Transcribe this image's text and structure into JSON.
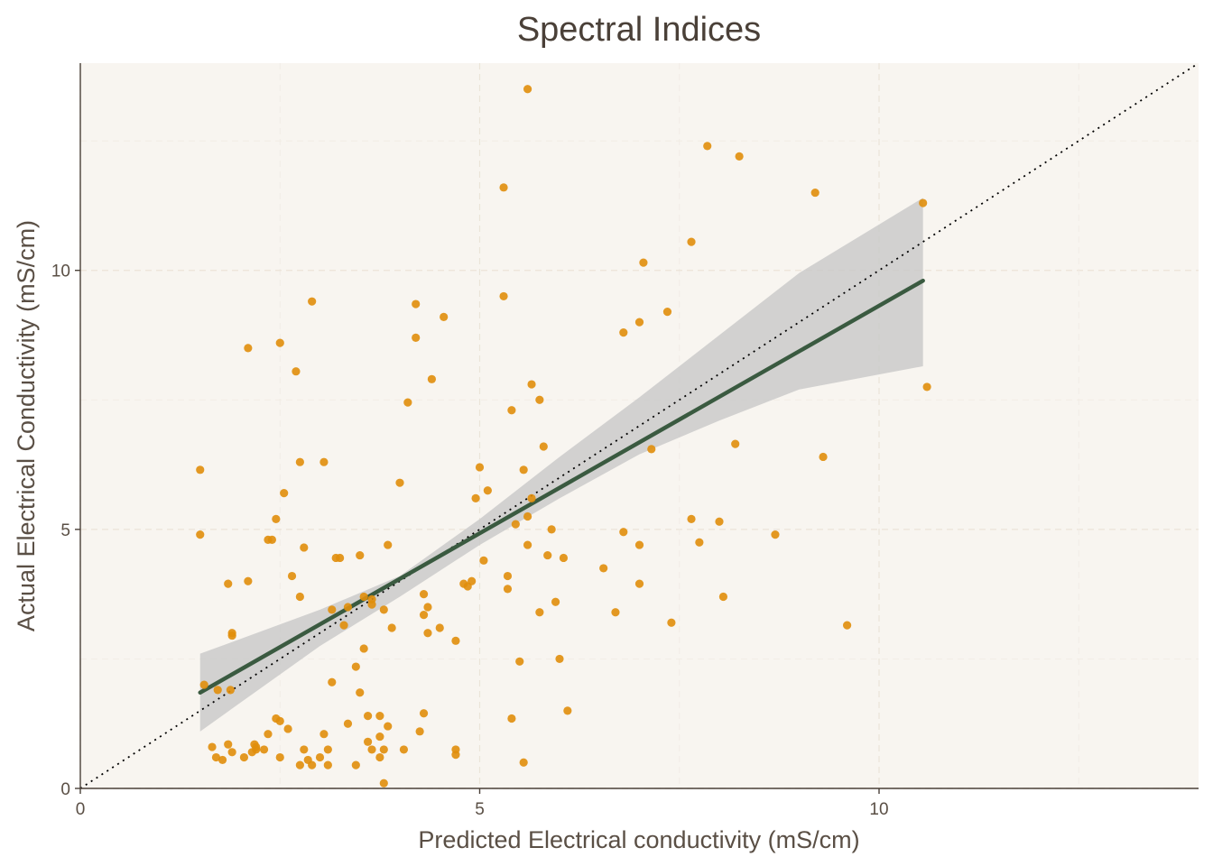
{
  "chart_data": {
    "type": "scatter",
    "title": "Spectral Indices",
    "xlabel": "Predicted Electrical conductivity (mS/cm)",
    "ylabel": "Actual Electrical Conductivity (mS/cm)",
    "xlim": [
      0,
      14
    ],
    "ylim": [
      0,
      14
    ],
    "x_ticks": [
      0,
      5,
      10
    ],
    "y_ticks": [
      0,
      5,
      10
    ],
    "grid": true,
    "colors": {
      "background": "#f8f5f0",
      "points": "#e08e0b",
      "fit_line": "#3a5a40",
      "confidence_band": "#c8c8c8",
      "identity_line": "#000000",
      "axis": "#4a4038"
    },
    "fit": {
      "x_start": 1.5,
      "y_start": 1.85,
      "x_end": 10.55,
      "y_end": 9.8
    },
    "confidence_band": {
      "x": [
        1.5,
        3.0,
        4.0,
        5.0,
        6.0,
        7.0,
        8.0,
        9.0,
        10.55
      ],
      "upper": [
        2.6,
        3.45,
        4.1,
        5.2,
        6.4,
        7.55,
        8.75,
        9.95,
        11.4
      ],
      "lower": [
        1.1,
        2.75,
        3.7,
        4.7,
        5.6,
        6.45,
        7.1,
        7.7,
        8.15
      ]
    },
    "series": [
      {
        "points": [
          [
            1.5,
            6.15
          ],
          [
            1.5,
            4.9
          ],
          [
            1.55,
            2.0
          ],
          [
            1.65,
            0.8
          ],
          [
            1.7,
            0.6
          ],
          [
            1.72,
            1.9
          ],
          [
            1.78,
            0.55
          ],
          [
            1.85,
            0.85
          ],
          [
            1.85,
            3.95
          ],
          [
            1.88,
            1.9
          ],
          [
            1.9,
            0.7
          ],
          [
            1.9,
            3.0
          ],
          [
            1.9,
            2.95
          ],
          [
            2.05,
            0.6
          ],
          [
            2.15,
            0.7
          ],
          [
            2.18,
            0.85
          ],
          [
            2.2,
            0.75
          ],
          [
            2.2,
            0.8
          ],
          [
            2.1,
            4.0
          ],
          [
            2.1,
            8.5
          ],
          [
            2.3,
            0.75
          ],
          [
            2.35,
            1.05
          ],
          [
            2.35,
            4.8
          ],
          [
            2.4,
            4.8
          ],
          [
            2.45,
            5.2
          ],
          [
            2.45,
            1.35
          ],
          [
            2.5,
            8.6
          ],
          [
            2.5,
            0.6
          ],
          [
            2.5,
            1.3
          ],
          [
            2.55,
            5.7
          ],
          [
            2.6,
            1.15
          ],
          [
            2.65,
            4.1
          ],
          [
            2.7,
            8.05
          ],
          [
            2.75,
            0.45
          ],
          [
            2.75,
            3.7
          ],
          [
            2.75,
            6.3
          ],
          [
            2.8,
            0.75
          ],
          [
            2.8,
            4.65
          ],
          [
            2.85,
            0.55
          ],
          [
            2.9,
            0.45
          ],
          [
            2.9,
            9.4
          ],
          [
            3.0,
            0.6
          ],
          [
            3.05,
            1.05
          ],
          [
            3.05,
            6.3
          ],
          [
            3.1,
            0.45
          ],
          [
            3.1,
            0.75
          ],
          [
            3.15,
            2.05
          ],
          [
            3.15,
            3.45
          ],
          [
            3.2,
            4.45
          ],
          [
            3.25,
            4.45
          ],
          [
            3.3,
            3.15
          ],
          [
            3.35,
            3.5
          ],
          [
            3.35,
            1.25
          ],
          [
            3.45,
            0.45
          ],
          [
            3.45,
            2.35
          ],
          [
            3.5,
            1.85
          ],
          [
            3.5,
            4.5
          ],
          [
            3.55,
            3.7
          ],
          [
            3.55,
            2.7
          ],
          [
            3.6,
            1.4
          ],
          [
            3.6,
            0.9
          ],
          [
            3.65,
            3.55
          ],
          [
            3.65,
            0.75
          ],
          [
            3.65,
            3.65
          ],
          [
            3.75,
            0.6
          ],
          [
            3.75,
            1.0
          ],
          [
            3.75,
            1.4
          ],
          [
            3.8,
            3.45
          ],
          [
            3.8,
            0.75
          ],
          [
            3.8,
            0.1
          ],
          [
            3.85,
            1.2
          ],
          [
            3.85,
            4.7
          ],
          [
            3.9,
            3.1
          ],
          [
            4.0,
            5.9
          ],
          [
            4.05,
            0.75
          ],
          [
            4.1,
            7.45
          ],
          [
            4.2,
            8.7
          ],
          [
            4.2,
            9.35
          ],
          [
            4.25,
            1.1
          ],
          [
            4.3,
            3.35
          ],
          [
            4.3,
            3.75
          ],
          [
            4.3,
            1.45
          ],
          [
            4.35,
            3.5
          ],
          [
            4.35,
            3.0
          ],
          [
            4.4,
            7.9
          ],
          [
            4.5,
            3.1
          ],
          [
            4.55,
            9.1
          ],
          [
            4.7,
            2.85
          ],
          [
            4.7,
            0.75
          ],
          [
            4.7,
            0.65
          ],
          [
            4.8,
            3.95
          ],
          [
            4.85,
            3.9
          ],
          [
            4.9,
            4.0
          ],
          [
            4.95,
            5.6
          ],
          [
            5.0,
            6.2
          ],
          [
            5.05,
            4.4
          ],
          [
            5.1,
            5.75
          ],
          [
            5.3,
            9.5
          ],
          [
            5.3,
            11.6
          ],
          [
            5.35,
            3.85
          ],
          [
            5.35,
            4.1
          ],
          [
            5.4,
            1.35
          ],
          [
            5.4,
            7.3
          ],
          [
            5.45,
            5.1
          ],
          [
            5.5,
            2.45
          ],
          [
            5.55,
            0.5
          ],
          [
            5.55,
            6.15
          ],
          [
            5.6,
            5.25
          ],
          [
            5.6,
            4.7
          ],
          [
            5.6,
            13.5
          ],
          [
            5.65,
            5.6
          ],
          [
            5.65,
            7.8
          ],
          [
            5.75,
            3.4
          ],
          [
            5.75,
            7.5
          ],
          [
            5.8,
            6.6
          ],
          [
            5.85,
            4.5
          ],
          [
            5.9,
            5.0
          ],
          [
            5.95,
            3.6
          ],
          [
            6.0,
            2.5
          ],
          [
            6.05,
            4.45
          ],
          [
            6.1,
            1.5
          ],
          [
            6.55,
            4.25
          ],
          [
            6.7,
            3.4
          ],
          [
            6.8,
            8.8
          ],
          [
            6.8,
            4.95
          ],
          [
            7.0,
            4.7
          ],
          [
            7.0,
            9.0
          ],
          [
            7.0,
            3.95
          ],
          [
            7.05,
            10.15
          ],
          [
            7.15,
            6.55
          ],
          [
            7.35,
            9.2
          ],
          [
            7.4,
            3.2
          ],
          [
            7.65,
            5.2
          ],
          [
            7.65,
            10.55
          ],
          [
            7.75,
            4.75
          ],
          [
            7.85,
            12.4
          ],
          [
            8.0,
            5.15
          ],
          [
            8.05,
            3.7
          ],
          [
            8.2,
            6.65
          ],
          [
            8.25,
            12.2
          ],
          [
            8.7,
            4.9
          ],
          [
            9.2,
            11.5
          ],
          [
            9.3,
            6.4
          ],
          [
            9.6,
            3.15
          ],
          [
            10.55,
            11.3
          ],
          [
            10.6,
            7.75
          ]
        ]
      }
    ]
  }
}
